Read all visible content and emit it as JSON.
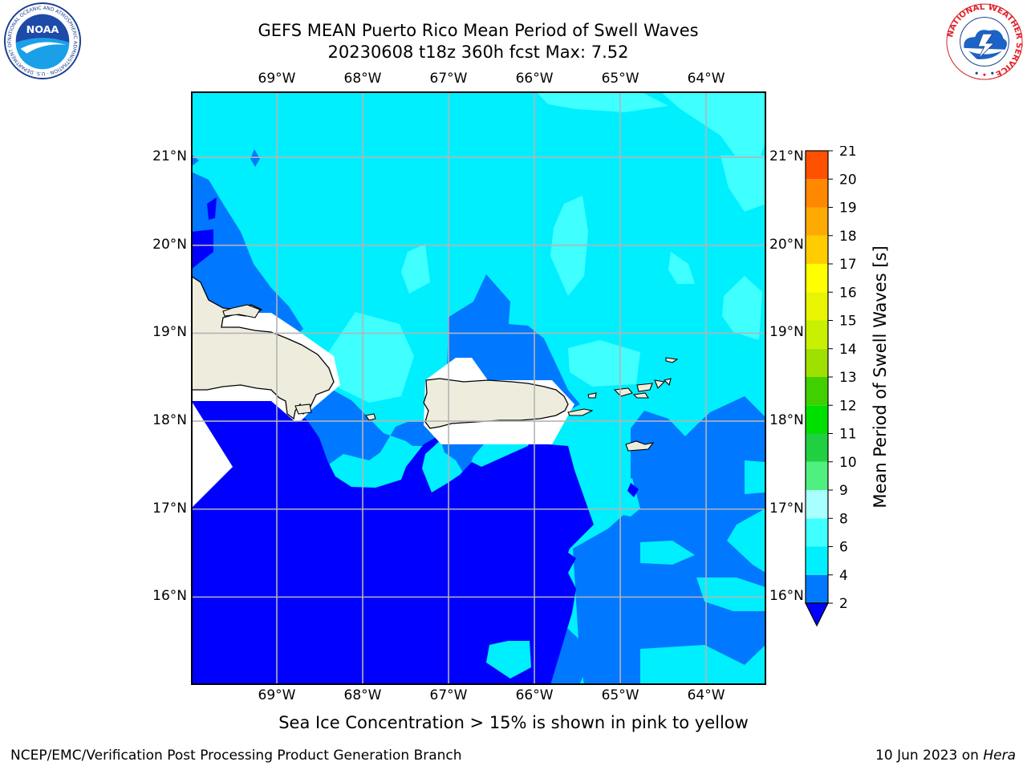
{
  "title": {
    "line1": "GEFS MEAN Puerto Rico Mean Period of Swell Waves",
    "line2": "20230608 t18z 360h fcst   Max: 7.52"
  },
  "logos": {
    "left": {
      "name": "noaa-logo",
      "text": "NOAA",
      "ring_text": "NATIONAL OCEANIC AND ATMOSPHERIC ADMINISTRATION · U.S. DEPARTMENT OF COMMERCE"
    },
    "right": {
      "name": "nws-logo",
      "ring_text": "NATIONAL WEATHER SERVICE"
    }
  },
  "map": {
    "lon_labels": [
      "69°W",
      "68°W",
      "67°W",
      "66°W",
      "65°W",
      "64°W"
    ],
    "lat_labels": [
      "21°N",
      "20°N",
      "19°N",
      "18°N",
      "17°N",
      "16°N"
    ],
    "lon_values": [
      -69,
      -68,
      -67,
      -66,
      -65,
      -64
    ],
    "lat_values": [
      21,
      20,
      19,
      18,
      17,
      16
    ],
    "extent": {
      "lon_min": -70.0,
      "lon_max": -63.3,
      "lat_min": 15.0,
      "lat_max": 21.75
    },
    "grid": true,
    "land_color": "#eeeddd",
    "coastline_color": "#000000"
  },
  "colorbar": {
    "label": "Mean Period of Swell Waves [s]",
    "ticks": [
      "2",
      "4",
      "6",
      "8",
      "9",
      "10",
      "11",
      "12",
      "13",
      "14",
      "15",
      "16",
      "17",
      "18",
      "19",
      "20",
      "21"
    ],
    "levels": [
      2,
      4,
      6,
      8,
      9,
      10,
      11,
      12,
      13,
      14,
      15,
      16,
      17,
      18,
      19,
      20,
      21
    ],
    "colors": [
      "#0078ff",
      "#00efff",
      "#3fffff",
      "#a8ffff",
      "#50f080",
      "#20d040",
      "#00e000",
      "#40d000",
      "#a0e000",
      "#c8f000",
      "#e8f400",
      "#ffff00",
      "#ffcc00",
      "#ffaa00",
      "#ff8800",
      "#ff5000",
      "#ff2000",
      "#ff0000"
    ],
    "under_color": "#0000ff",
    "extend": "min"
  },
  "field_colors": {
    "lt2": "#0000ff",
    "2-4": "#0078ff",
    "4-6": "#00efff",
    "6-8": "#3fffff"
  },
  "caption": "Sea Ice Concentration > 15% is shown in pink to yellow",
  "footer": {
    "left": "NCEP/EMC/Verification Post Processing Product Generation Branch",
    "right_prefix": "10 Jun 2023 on ",
    "right_machine": "Hera"
  }
}
